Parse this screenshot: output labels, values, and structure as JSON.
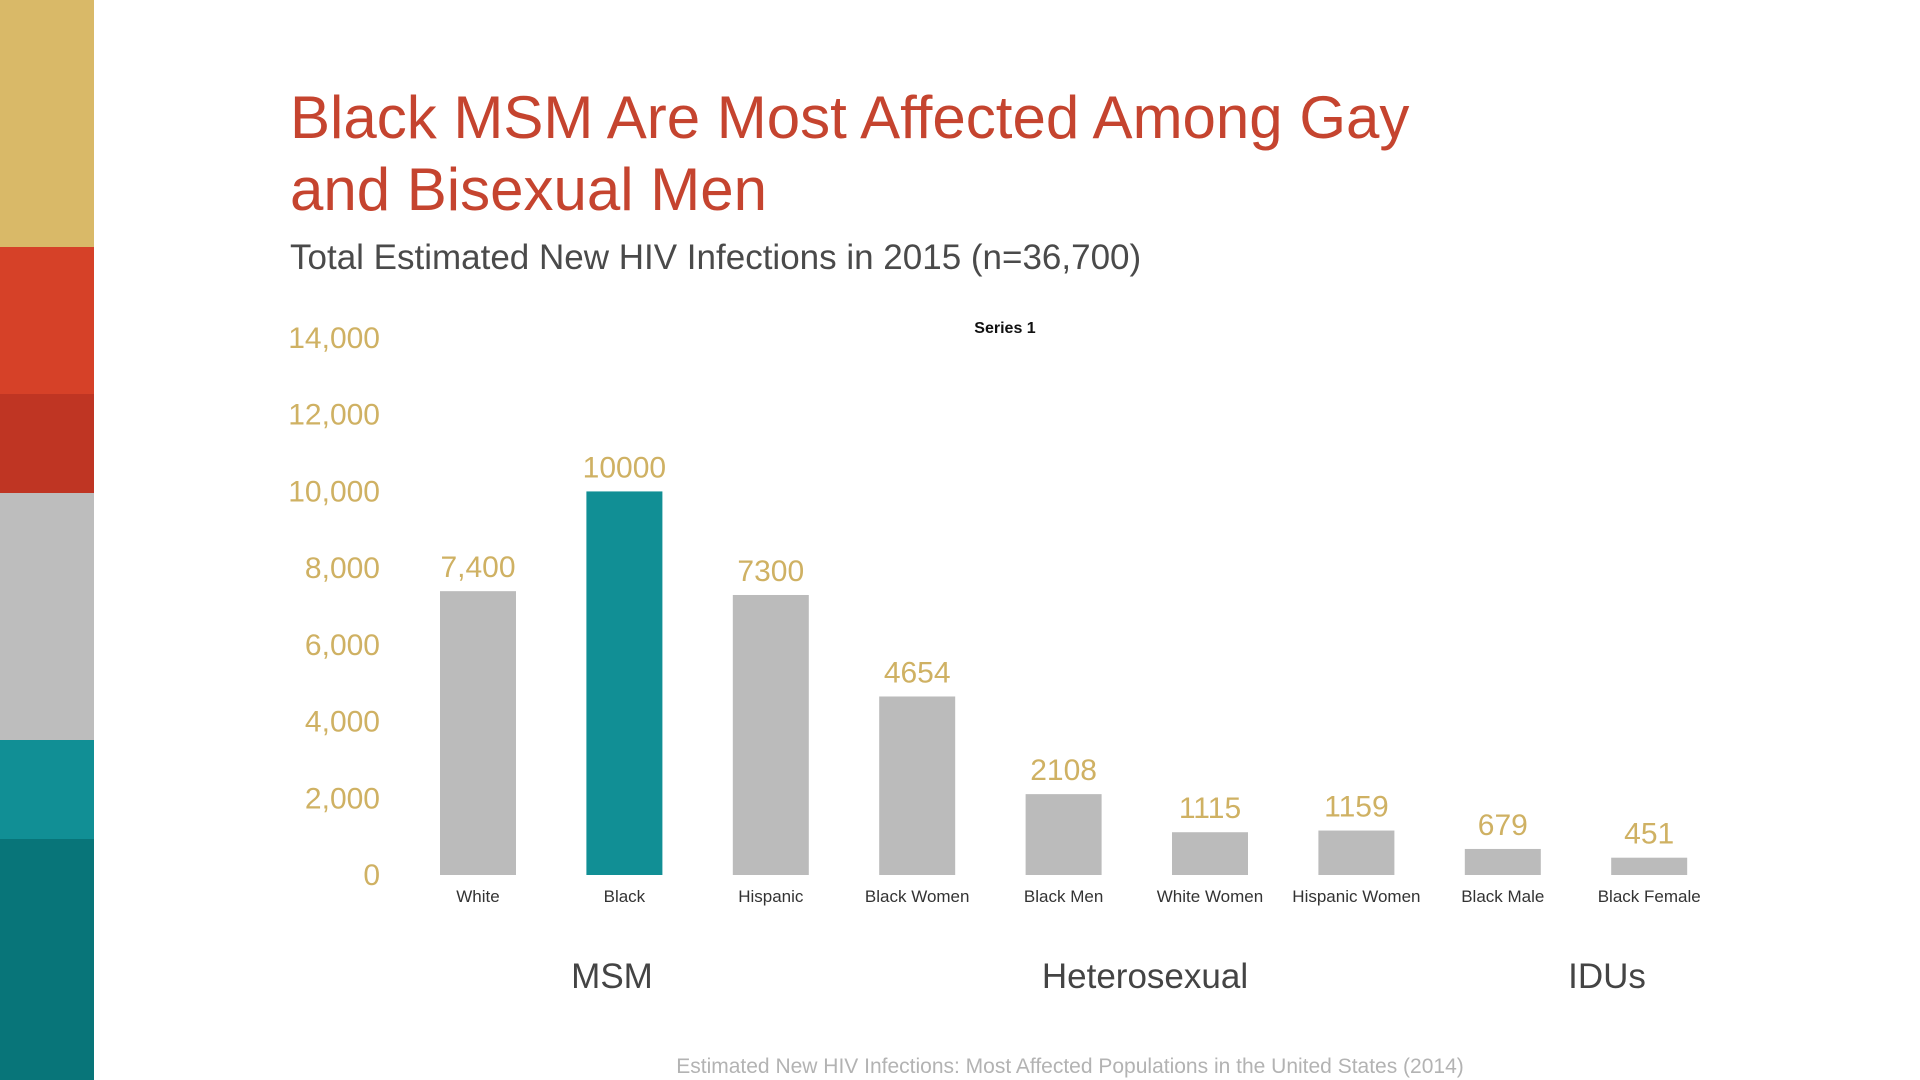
{
  "slide": {
    "title_line1": "Black MSM Are Most Affected Among Gay",
    "title_line2": "and Bisexual Men",
    "subtitle": "Total Estimated New HIV Infections in 2015 (n=36,700)",
    "source": "Estimated New HIV Infections: Most Affected Populations in the United States (2014)"
  },
  "colors": {
    "title": "#c5442f",
    "bar_default": "#bbbbbb",
    "bar_highlight": "#118f95",
    "value_label": "#cfb163",
    "tick_label": "#cfb163",
    "stripes": [
      "#d9b968",
      "#d64128",
      "#bf3523",
      "#bdbdbd",
      "#118f95",
      "#087579"
    ]
  },
  "chart_data": {
    "type": "bar",
    "title": "Total Estimated New HIV Infections in 2015 (n=36,700)",
    "legend": "Series 1",
    "categories": [
      "White",
      "Black",
      "Hispanic",
      "Black Women",
      "Black Men",
      "White Women",
      "Hispanic Women",
      "Black Male",
      "Black Female"
    ],
    "series": [
      {
        "name": "Series 1",
        "values": [
          7400,
          10000,
          7300,
          4654,
          2108,
          1115,
          1159,
          679,
          451
        ],
        "labels": [
          "7,400",
          "10000",
          "7300",
          "4654",
          "2108",
          "1115",
          "1159",
          "679",
          "451"
        ]
      }
    ],
    "highlight_index": 1,
    "ylim": [
      0,
      14000
    ],
    "yticks": [
      0,
      2000,
      4000,
      6000,
      8000,
      10000,
      12000,
      14000
    ],
    "ytick_labels": [
      "0",
      "2,000",
      "4,000",
      "6,000",
      "8,000",
      "10,000",
      "12,000",
      "14,000"
    ],
    "groups": [
      {
        "label": "MSM",
        "start": 0,
        "end": 2
      },
      {
        "label": "Heterosexual",
        "start": 3,
        "end": 6
      },
      {
        "label": "IDUs",
        "start": 7,
        "end": 8
      }
    ],
    "grid": false
  }
}
